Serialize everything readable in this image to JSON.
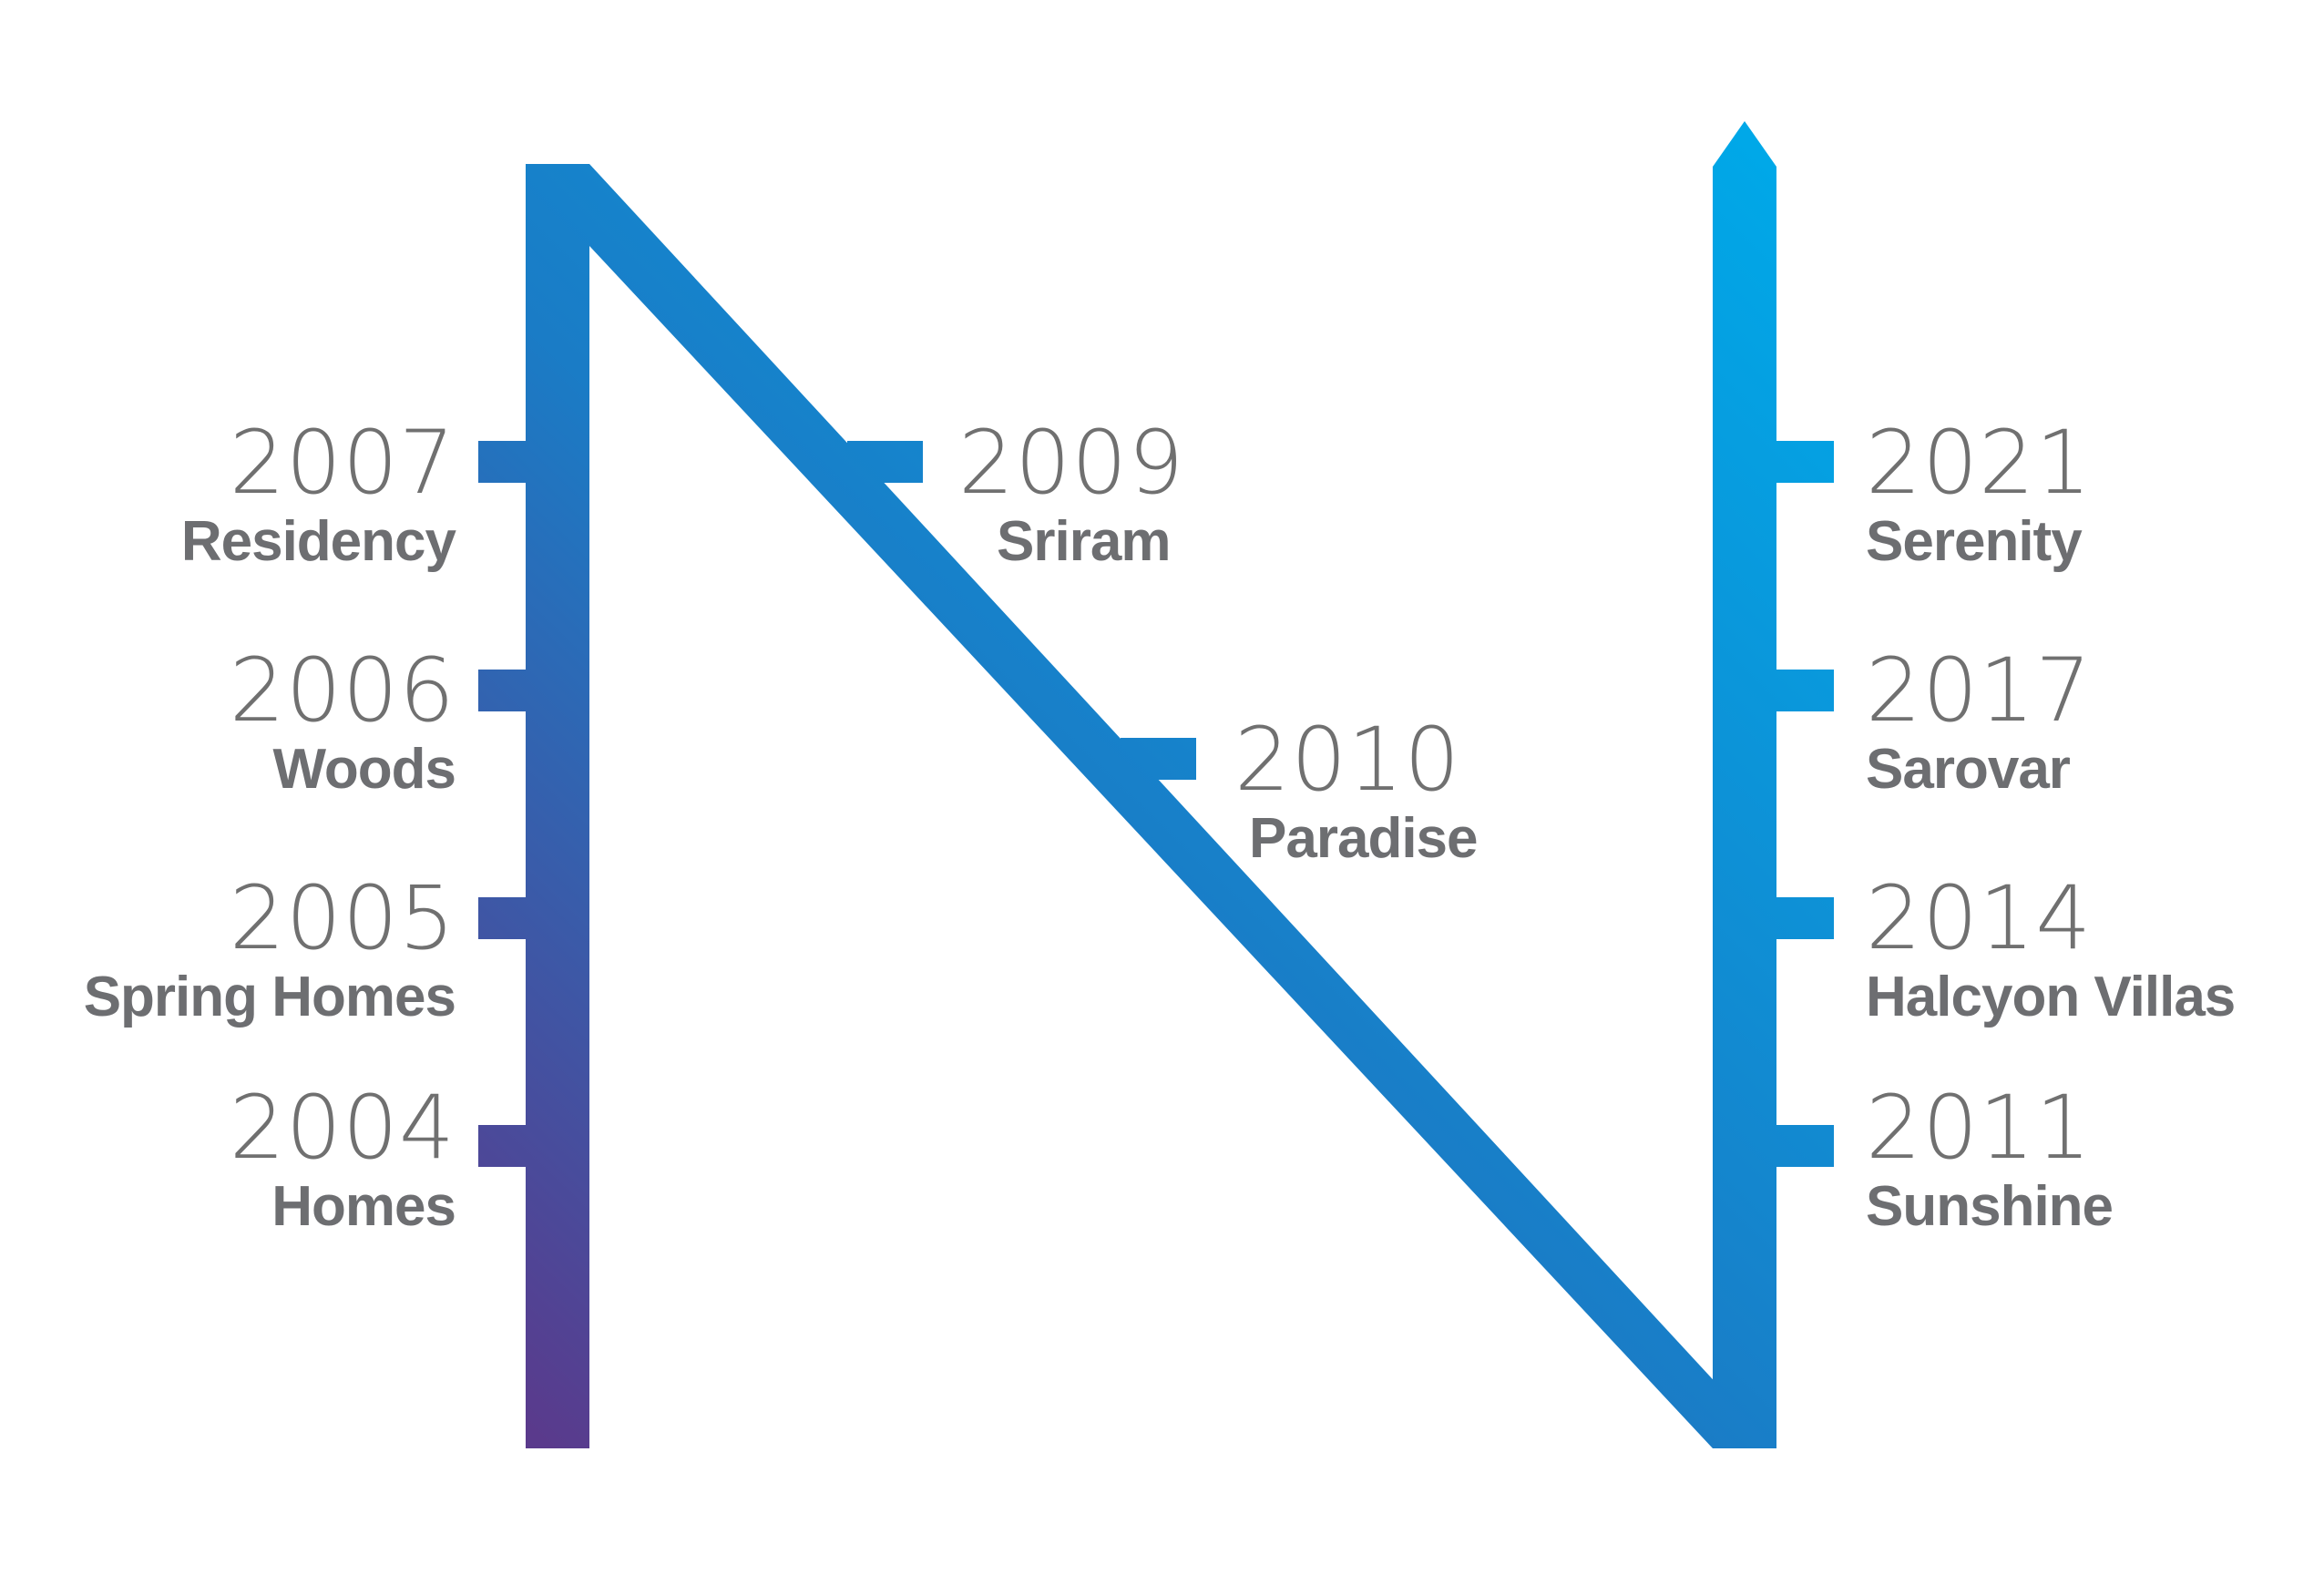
{
  "colors": {
    "gradient_start": "#5a3a8c",
    "gradient_mid": "#1a7cc6",
    "gradient_end": "#00a8e8",
    "text": "#6d6e71"
  },
  "milestones": [
    {
      "year": "2004",
      "name": "Homes"
    },
    {
      "year": "2005",
      "name": "Spring Homes"
    },
    {
      "year": "2006",
      "name": "Woods"
    },
    {
      "year": "2007",
      "name": "Residency"
    },
    {
      "year": "2009",
      "name": "Sriram"
    },
    {
      "year": "2010",
      "name": "Paradise"
    },
    {
      "year": "2011",
      "name": "Sunshine"
    },
    {
      "year": "2014",
      "name": "Halcyon Villas"
    },
    {
      "year": "2017",
      "name": "Sarovar"
    },
    {
      "year": "2021",
      "name": "Serenity"
    }
  ]
}
